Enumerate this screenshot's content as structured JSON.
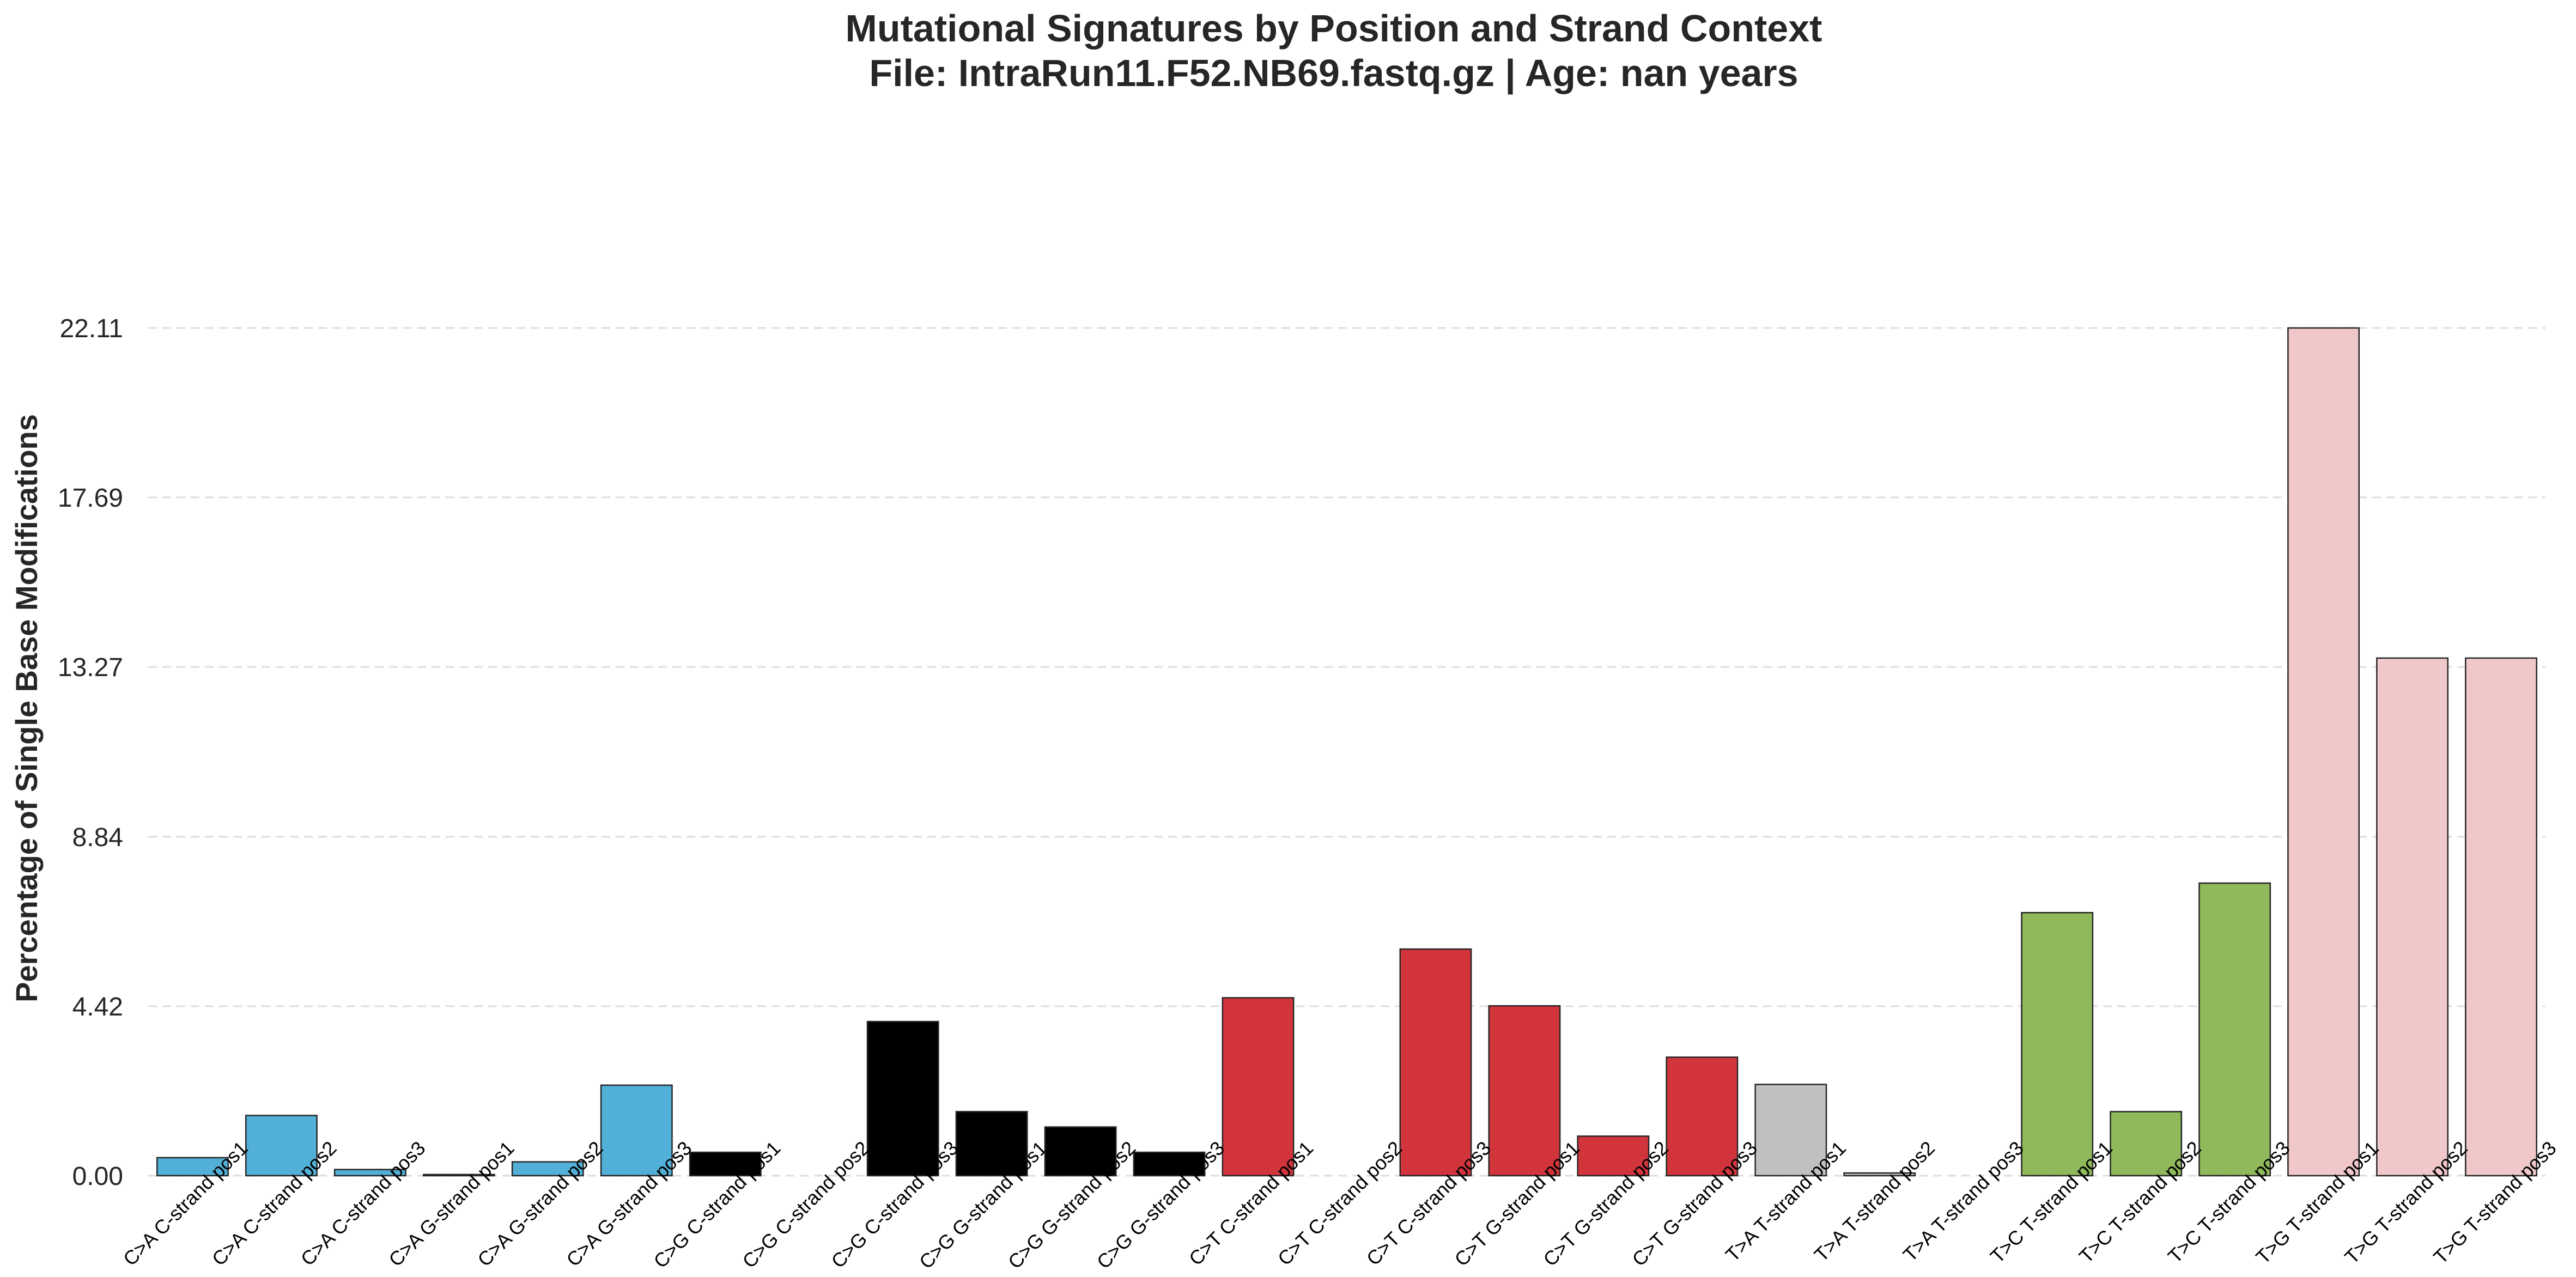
{
  "chart_data": {
    "type": "bar",
    "title": "Mutational Signatures by Position and Strand Context",
    "subtitle": "File: IntraRun11.F52.NB69.fastq.gz | Age: nan years",
    "xlabel": "",
    "ylabel": "Percentage of Single Base Modifications",
    "ylim": [
      0,
      22.11
    ],
    "yticks": [
      "0.00",
      "4.42",
      "8.84",
      "13.27",
      "17.69",
      "22.11"
    ],
    "ytick_values": [
      0,
      4.42,
      8.84,
      13.27,
      17.69,
      22.11
    ],
    "grid": "horizontal dashed",
    "categories": [
      "C>A C-strand pos1",
      "C>A C-strand pos2",
      "C>A C-strand pos3",
      "C>A G-strand pos1",
      "C>A G-strand pos2",
      "C>A G-strand pos3",
      "C>G C-strand pos1",
      "C>G C-strand pos2",
      "C>G C-strand pos3",
      "C>G G-strand pos1",
      "C>G G-strand pos2",
      "C>G G-strand pos3",
      "C>T C-strand pos1",
      "C>T C-strand pos2",
      "C>T C-strand pos3",
      "C>T G-strand pos1",
      "C>T G-strand pos2",
      "C>T G-strand pos3",
      "T>A T-strand pos1",
      "T>A T-strand pos2",
      "T>A T-strand pos3",
      "T>C T-strand pos1",
      "T>C T-strand pos2",
      "T>C T-strand pos3",
      "T>G T-strand pos1",
      "T>G T-strand pos2",
      "T>G T-strand pos3"
    ],
    "values": [
      0.47,
      1.57,
      0.16,
      0.03,
      0.36,
      2.36,
      0.61,
      0.0,
      4.02,
      1.67,
      1.27,
      0.61,
      4.64,
      0.0,
      5.91,
      4.43,
      1.03,
      3.09,
      2.38,
      0.07,
      0.0,
      6.86,
      1.67,
      7.63,
      22.11,
      13.5,
      13.5
    ],
    "colors": [
      "#52B0D8",
      "#52B0D8",
      "#52B0D8",
      "#52B0D8",
      "#52B0D8",
      "#52B0D8",
      "#000000",
      "#000000",
      "#000000",
      "#000000",
      "#000000",
      "#000000",
      "#D2343C",
      "#D2343C",
      "#D2343C",
      "#D2343C",
      "#D2343C",
      "#D2343C",
      "#C0C0C0",
      "#C0C0C0",
      "#C0C0C0",
      "#8FB95A",
      "#8FB95A",
      "#8FB95A",
      "#F0C8CA",
      "#F0C8CA",
      "#F0C8CA"
    ]
  }
}
